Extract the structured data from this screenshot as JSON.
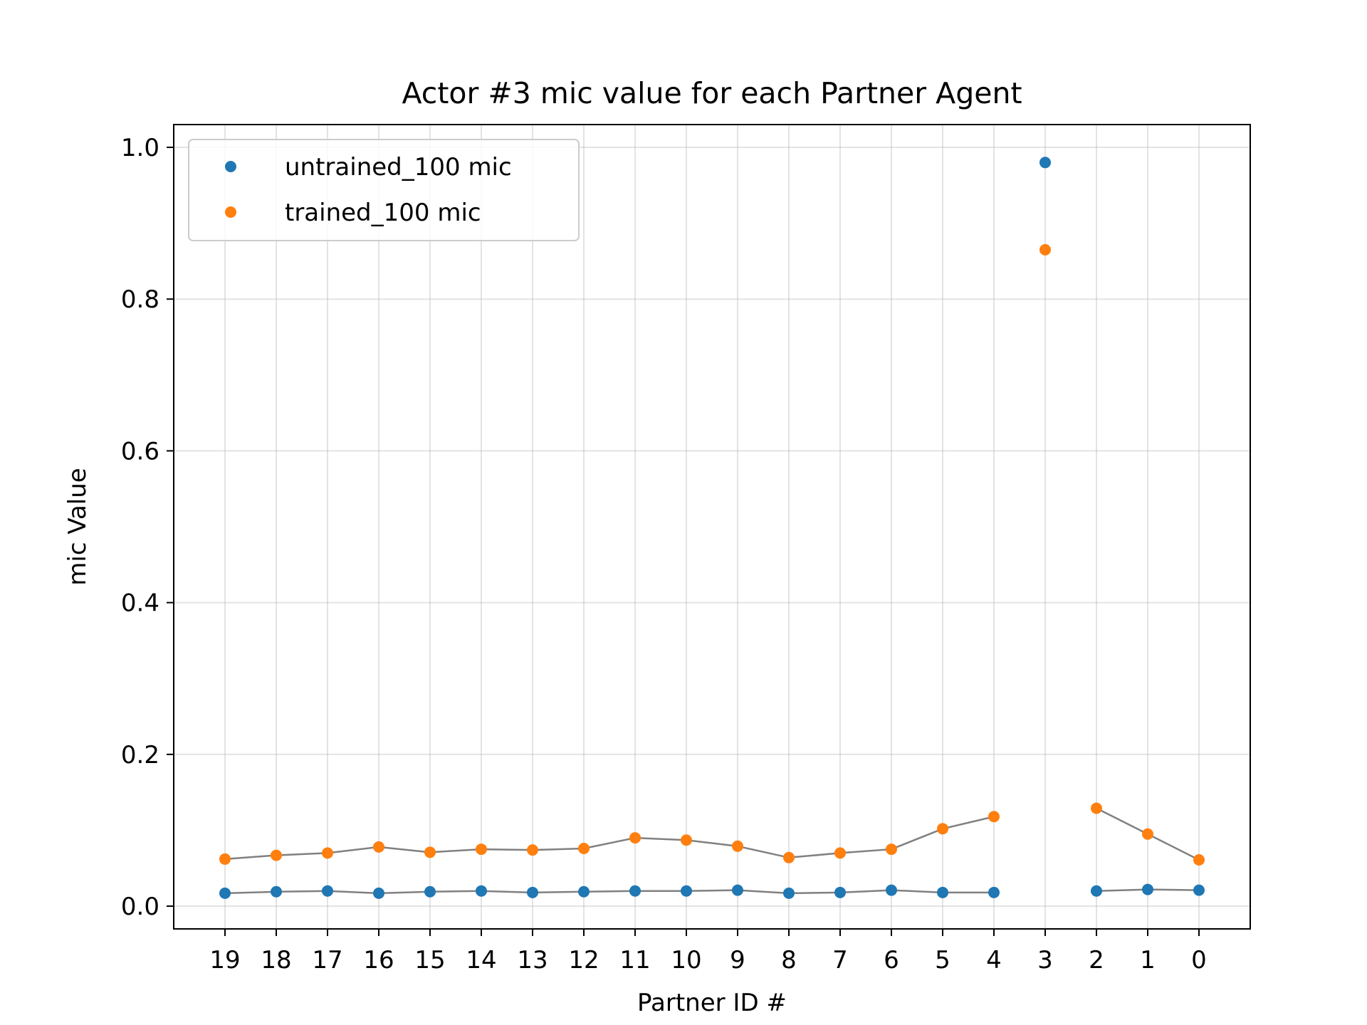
{
  "chart_data": {
    "type": "scatter",
    "title": "Actor #3 mic value for each Partner Agent",
    "xlabel": "Partner ID #",
    "ylabel": "mic Value",
    "categories": [
      "19",
      "18",
      "17",
      "16",
      "15",
      "14",
      "13",
      "12",
      "11",
      "10",
      "9",
      "8",
      "7",
      "6",
      "5",
      "4",
      "3",
      "2",
      "1",
      "0"
    ],
    "ylim": [
      -0.03,
      1.03
    ],
    "yticks": [
      0.0,
      0.2,
      0.4,
      0.6,
      0.8,
      1.0
    ],
    "ytick_labels": [
      "0.0",
      "0.2",
      "0.4",
      "0.6",
      "0.8",
      "1.0"
    ],
    "grid": true,
    "legend_position": "upper-left",
    "connector_line_color": "#808080",
    "connector_note_gap_at": "3",
    "series": [
      {
        "name": "untrained_100 mic",
        "color": "#1f77b4",
        "values": [
          0.017,
          0.019,
          0.02,
          0.017,
          0.019,
          0.02,
          0.018,
          0.019,
          0.02,
          0.02,
          0.021,
          0.017,
          0.018,
          0.021,
          0.018,
          0.018,
          0.98,
          0.02,
          0.022,
          0.021
        ]
      },
      {
        "name": "trained_100 mic",
        "color": "#ff7f0e",
        "values": [
          0.062,
          0.067,
          0.07,
          0.078,
          0.071,
          0.075,
          0.074,
          0.076,
          0.09,
          0.087,
          0.079,
          0.064,
          0.07,
          0.075,
          0.102,
          0.118,
          0.865,
          0.129,
          0.095,
          0.061
        ]
      }
    ]
  }
}
